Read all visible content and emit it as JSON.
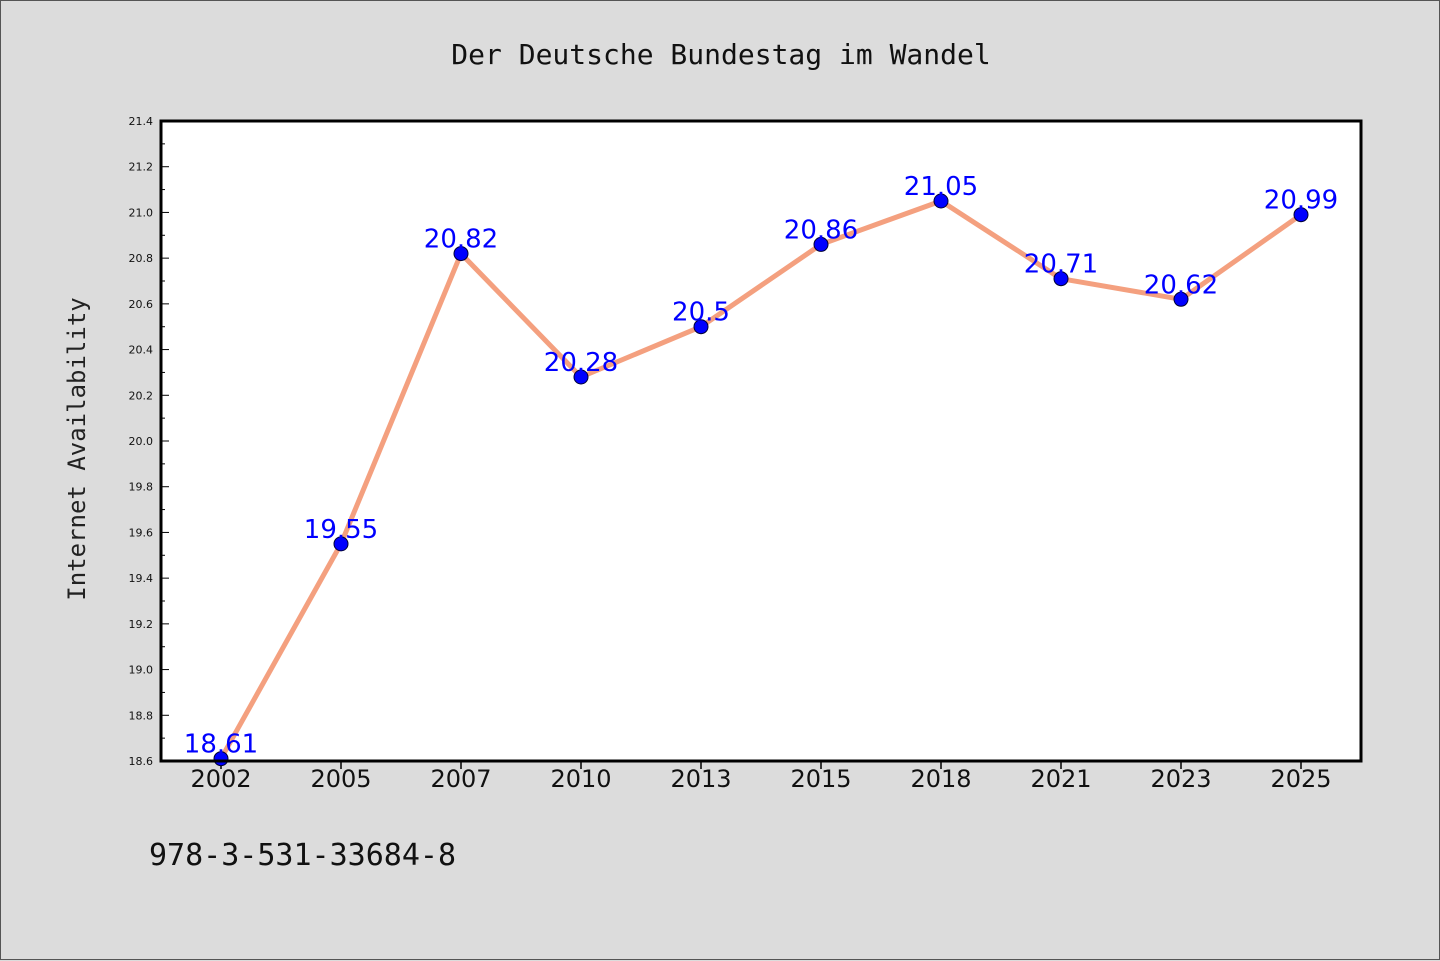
{
  "chart_data": {
    "type": "line",
    "title": "Der Deutsche Bundestag im Wandel",
    "xlabel": "",
    "ylabel": "Internet Availability",
    "categories": [
      "2002",
      "2005",
      "2007",
      "2010",
      "2013",
      "2015",
      "2018",
      "2021",
      "2023",
      "2025"
    ],
    "values": [
      18.61,
      19.55,
      20.82,
      20.28,
      20.5,
      20.86,
      21.05,
      20.71,
      20.62,
      20.99
    ],
    "data_labels": [
      "18.61",
      "19.55",
      "20.82",
      "20.28",
      "20.5",
      "20.86",
      "21.05",
      "20.71",
      "20.62",
      "20.99"
    ],
    "ylim": [
      18.6,
      21.4
    ],
    "yticks": [
      "18.6",
      "18.8",
      "19.0",
      "19.2",
      "19.4",
      "19.6",
      "19.8",
      "20.0",
      "20.2",
      "20.4",
      "20.6",
      "20.8",
      "21.0",
      "21.2",
      "21.4"
    ],
    "grid": false,
    "legend": "none",
    "colors": {
      "line": "#f4a07f",
      "marker": "#0000ff",
      "label": "#0000ff",
      "background": "#dcdcdc",
      "plot_area": "#ffffff"
    }
  },
  "footer": {
    "isbn": "978-3-531-33684-8"
  }
}
